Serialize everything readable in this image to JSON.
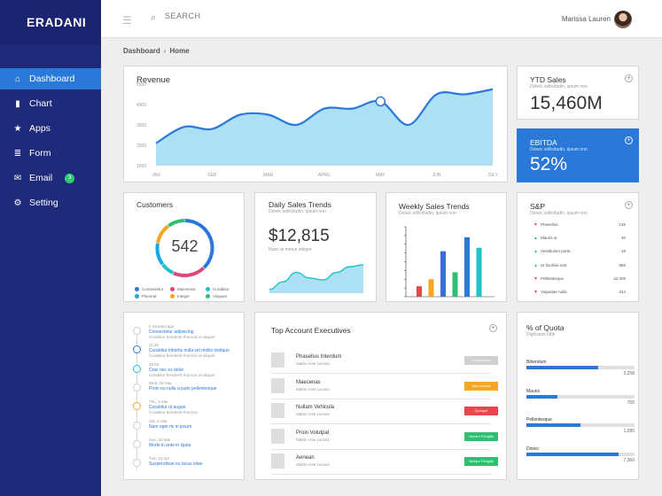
{
  "brand": "ERADANI",
  "nav": [
    {
      "label": "Dashboard",
      "icon": "home-icon",
      "glyph": "⌂",
      "active": true
    },
    {
      "label": "Chart",
      "icon": "chart-icon",
      "glyph": "▮"
    },
    {
      "label": "Apps",
      "icon": "star-icon",
      "glyph": "★"
    },
    {
      "label": "Form",
      "icon": "form-icon",
      "glyph": "≣"
    },
    {
      "label": "Email",
      "icon": "email-icon",
      "glyph": "✉",
      "badge": "3"
    },
    {
      "label": "Setting",
      "icon": "gear-icon",
      "glyph": "⚙"
    }
  ],
  "topbar": {
    "search_placeholder": "SEARCH",
    "user": "Marissa Lauren"
  },
  "breadcrumb": {
    "parent": "Dashboard",
    "current": "Home"
  },
  "revenue": {
    "title": "Revenue",
    "chart_data": {
      "type": "area",
      "x": [
        "JAN",
        "FEB",
        "MAR",
        "APRIL",
        "MAY",
        "JUN",
        "JULY"
      ],
      "y_ticks": [
        "1000",
        "2000",
        "3000",
        "4000",
        "5000"
      ],
      "ylim": [
        1000,
        5000
      ],
      "points": [
        [
          0,
          2100
        ],
        [
          0.5,
          2900
        ],
        [
          1,
          2800
        ],
        [
          1.5,
          3500
        ],
        [
          2,
          3500
        ],
        [
          2.5,
          3000
        ],
        [
          3,
          3800
        ],
        [
          3.5,
          3800
        ],
        [
          4,
          4150
        ],
        [
          4.5,
          3000
        ],
        [
          5,
          4500
        ],
        [
          5.5,
          4500
        ],
        [
          6,
          4750
        ]
      ],
      "highlight": [
        4,
        4150
      ],
      "color": "#2a78d8",
      "fill": "#aee0f5"
    }
  },
  "ytd": {
    "title": "YTD Sales",
    "subtitle": "Donec sollicitudin, ipsum non",
    "value": "15,460M"
  },
  "ebitda": {
    "title": "EBITDA",
    "subtitle": "Donec sollicitudin, ipsum non",
    "value": "52%"
  },
  "customers": {
    "title": "Customers",
    "value": "542",
    "chart_data": {
      "type": "pie",
      "slices": [
        {
          "name": "Consectetur",
          "value": 38,
          "color": "#2a78d8"
        },
        {
          "name": "Maecenas",
          "value": 19,
          "color": "#e0457b"
        },
        {
          "name": "Curabitur",
          "value": 8,
          "color": "#1ec2c9"
        },
        {
          "name": "Placerat",
          "value": 13,
          "color": "#17a8e0"
        },
        {
          "name": "Integer",
          "value": 12,
          "color": "#f5a623"
        },
        {
          "name": "Aliquam",
          "value": 10,
          "color": "#2fbf71"
        }
      ]
    }
  },
  "daily": {
    "title": "Daily Sales Trends",
    "subtitle": "Donec sollicitudin, ipsum non",
    "value": "$12,815",
    "caption": "Nunc at metus integre",
    "chart_data": {
      "type": "area",
      "values": [
        2,
        6,
        11,
        8,
        7,
        11,
        14,
        15
      ]
    }
  },
  "weekly": {
    "title": "Weekly Sales Trends",
    "subtitle": "Donec sollicitudin, ipsum non",
    "chart_data": {
      "type": "bar",
      "values": [
        3,
        5,
        13,
        7,
        17,
        14
      ],
      "colors": [
        "#e8474c",
        "#f5a623",
        "#3a6fd8",
        "#2fbf71",
        "#2a78d8",
        "#1ec2c9"
      ],
      "ylim": [
        0,
        20
      ]
    }
  },
  "sp": {
    "title": "S&P",
    "subtitle": "Donec sollicitudin, ipsum non",
    "rows": [
      {
        "name": "Phasellus",
        "value": "125",
        "dir": "down"
      },
      {
        "name": "Mauris ut",
        "value": "40",
        "dir": "up"
      },
      {
        "name": "Vestibulum porta",
        "value": "18",
        "dir": "up"
      },
      {
        "name": "Ut facilisis erat",
        "value": "865",
        "dir": "up"
      },
      {
        "name": "Pellentesque",
        "value": "42,309",
        "dir": "down"
      },
      {
        "name": "Vulputate nulla",
        "value": "344",
        "dir": "down"
      }
    ]
  },
  "timeline": [
    {
      "time": "5 minutes ago",
      "head": "Consectetur adipiscing",
      "desc": "Curabitur hendrerit rhoncus ut aliquet",
      "color": "#ccc"
    },
    {
      "time": "11:30",
      "head": "Curabitur lobortis nulla vel mollis tristique",
      "desc": "Curabitur hendrerit rhoncus ut aliquet",
      "color": "#2a78d8"
    },
    {
      "time": "10:00",
      "head": "Cras nec ex dolor",
      "desc": "Curabitur hendrerit rhoncus ut aliquet",
      "color": "#1ec2c9"
    },
    {
      "time": "Wed, 28 Sep",
      "head": "Proin eu nulla a justo pellentesque",
      "desc": "",
      "color": "#ccc"
    },
    {
      "time": "Thu, 3 Mar",
      "head": "Curabitur ut augue",
      "desc": "Curabitur hendrerit rhoncus",
      "color": "#f5a623"
    },
    {
      "time": "Sat, 5 Mar",
      "head": "Nam eget mi in ipsum",
      "desc": "",
      "color": "#ccc"
    },
    {
      "time": "Sun, 20 Mar",
      "head": "Morbi in ante in ligula",
      "desc": "",
      "color": "#ccc"
    },
    {
      "time": "Tue, 12 Apr",
      "head": "Suspendisse eu lacus vitae",
      "desc": "",
      "color": "#ccc"
    }
  ],
  "executives": {
    "title": "Top Account Executives",
    "rows": [
      {
        "name": "Phasellus Interdum",
        "sub": "Mattis Ante Lacinia",
        "badge": "Consectetur",
        "color": "#cfcfcf"
      },
      {
        "name": "Maecenas",
        "sub": "Mattis Ante Lacinia",
        "badge": "Sed Lacinia",
        "color": "#f5a623"
      },
      {
        "name": "Nullam Vehicula",
        "sub": "Mattis Ante Lacinia",
        "badge": "Quisque",
        "color": "#e8474c"
      },
      {
        "name": "Proin Volutpat",
        "sub": "Mattis Ante Lacinia",
        "badge": "Nullam Fringilla",
        "color": "#2fbf71"
      },
      {
        "name": "Aenean",
        "sub": "Mattis Ante Lacinia",
        "badge": "Nullam Fringilla",
        "color": "#2fbf71"
      }
    ]
  },
  "quota": {
    "title": "% of Quota",
    "subtitle": "Dignissim nibh",
    "rows": [
      {
        "name": "Bibendum",
        "value": "3,258",
        "fill": 0.66
      },
      {
        "name": "Mauris",
        "value": "765",
        "fill": 0.29
      },
      {
        "name": "Pellentesque",
        "value": "1,285",
        "fill": 0.5
      },
      {
        "name": "Donec",
        "value": "7,360",
        "fill": 0.85
      }
    ]
  }
}
